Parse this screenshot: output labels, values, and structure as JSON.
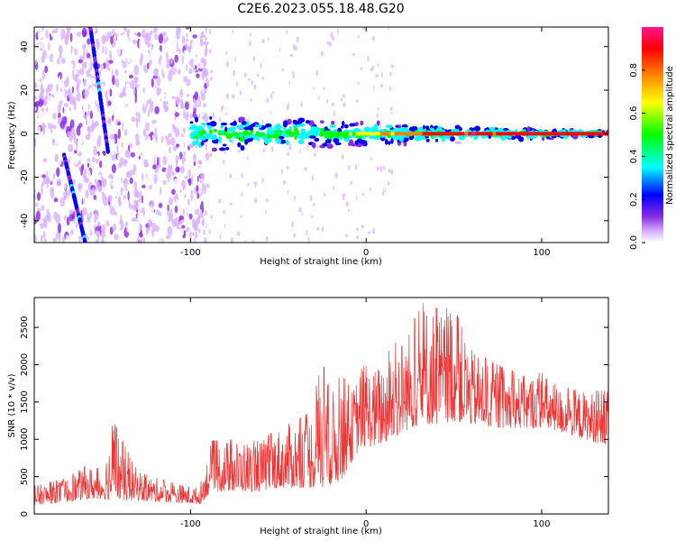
{
  "title": "C2E6.2023.055.18.48.G20",
  "chart_data": [
    {
      "type": "heatmap",
      "title": "C2E6.2023.055.18.48.G20",
      "xlabel": "Height of straight line (km)",
      "ylabel": "Frequency (Hz)",
      "xlim": [
        -189,
        138
      ],
      "ylim": [
        -50,
        49
      ],
      "xticks": [
        -100,
        0,
        100
      ],
      "yticks": [
        -40,
        -20,
        0,
        20,
        40
      ],
      "colorbar": {
        "label": "Normalized spectral amplitude",
        "range": [
          0,
          1
        ],
        "ticks": [
          0.0,
          0.2,
          0.4,
          0.6,
          0.8
        ],
        "colors": [
          "#ffffff",
          "#d9b3ff",
          "#8a2be2",
          "#0000ff",
          "#00ffff",
          "#00ff00",
          "#ffff00",
          "#ff8000",
          "#ff0000",
          "#ff1493"
        ]
      },
      "description_features": {
        "noise_region_x": [
          -189,
          -100
        ],
        "signal_line_freq_hz": 0,
        "signal_start_km": -100,
        "diagonal_tracks": [
          {
            "x": [
              -157,
              -147
            ],
            "y": [
              49,
              -8
            ]
          },
          {
            "x": [
              -172,
              -160
            ],
            "y": [
              -10,
              -50
            ]
          }
        ]
      }
    },
    {
      "type": "line",
      "xlabel": "Height of straight line (km)",
      "ylabel": "SNR (10 * v/v)",
      "xlim": [
        -189,
        138
      ],
      "ylim": [
        0,
        2900
      ],
      "xticks": [
        -100,
        0,
        100
      ],
      "yticks": [
        0,
        500,
        1000,
        1500,
        2000,
        2500
      ],
      "color": "#ee3333",
      "envelope": [
        [
          -189,
          120,
          380
        ],
        [
          -170,
          160,
          480
        ],
        [
          -160,
          200,
          650
        ],
        [
          -150,
          200,
          600
        ],
        [
          -144,
          180,
          1250
        ],
        [
          -130,
          180,
          560
        ],
        [
          -110,
          150,
          420
        ],
        [
          -95,
          130,
          360
        ],
        [
          -88,
          300,
          980
        ],
        [
          -75,
          300,
          1000
        ],
        [
          -60,
          300,
          980
        ],
        [
          -50,
          350,
          1150
        ],
        [
          -40,
          350,
          1250
        ],
        [
          -30,
          350,
          1400
        ],
        [
          -26,
          300,
          2150
        ],
        [
          -20,
          400,
          1600
        ],
        [
          -14,
          450,
          1900
        ],
        [
          -8,
          700,
          1650
        ],
        [
          -3,
          900,
          2000
        ],
        [
          5,
          900,
          1950
        ],
        [
          15,
          1000,
          2250
        ],
        [
          25,
          1150,
          2500
        ],
        [
          33,
          1200,
          2850
        ],
        [
          45,
          1200,
          2700
        ],
        [
          48,
          1250,
          2900
        ],
        [
          60,
          1200,
          2200
        ],
        [
          75,
          1150,
          2000
        ],
        [
          90,
          1150,
          1850
        ],
        [
          100,
          1150,
          1900
        ],
        [
          110,
          1100,
          1700
        ],
        [
          125,
          1000,
          1650
        ],
        [
          138,
          900,
          1650
        ]
      ]
    }
  ]
}
